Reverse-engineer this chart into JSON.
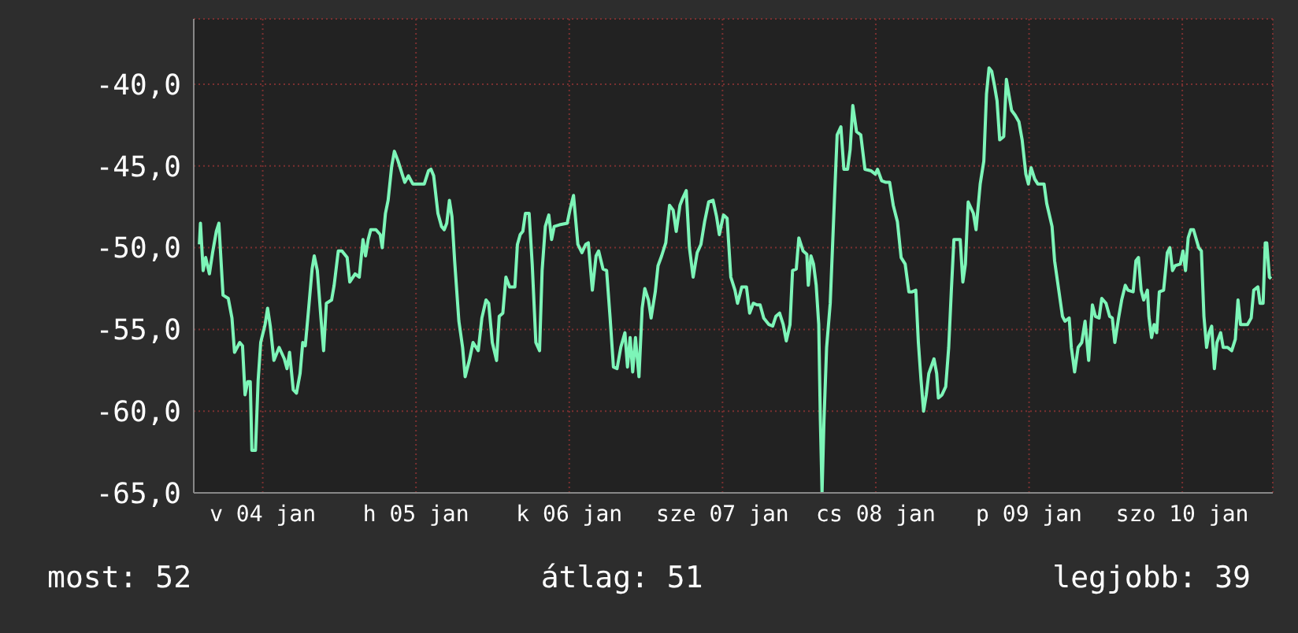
{
  "chart_data": {
    "type": "line",
    "color": "#7df5b8",
    "x": [
      "--01-04T02:05",
      "--01-04T02:15",
      "--01-04T02:40",
      "--01-04T03:04",
      "--01-04T03:39",
      "--01-04T04:09",
      "--01-04T04:44",
      "--01-04T05:08",
      "--01-04T05:47",
      "--01-04T06:36",
      "--01-04T07:11",
      "--01-04T07:35",
      "--01-04T08:24",
      "--01-04T08:50",
      "--01-04T09:14",
      "--01-04T09:39",
      "--01-04T10:03",
      "--01-04T10:18",
      "--01-04T10:52",
      "--01-04T11:17",
      "--01-04T11:41",
      "--01-04T12:22",
      "--01-04T12:46",
      "--01-04T13:11",
      "--01-04T13:45",
      "--01-04T14:34",
      "--01-04T15:23",
      "--01-04T15:48",
      "--01-04T16:12",
      "--01-04T16:47",
      "--01-04T17:17",
      "--01-04T17:51",
      "--01-04T18:16",
      "--01-04T18:40",
      "--01-04T19:05",
      "--01-04T19:44",
      "--01-04T20:04",
      "--01-04T20:33",
      "--01-04T21:07",
      "--01-04T21:32",
      "--01-04T21:58",
      "--01-04T22:47",
      "--01-04T23:11",
      "--01-04T23:50",
      "--01-05T00:24",
      "--01-05T01:13",
      "--01-05T01:38",
      "--01-05T02:28",
      "--01-05T03:07",
      "--01-05T03:42",
      "--01-05T04:06",
      "--01-05T04:31",
      "--01-05T04:55",
      "--01-05T05:44",
      "--01-05T06:24",
      "--01-05T06:43",
      "--01-05T07:13",
      "--01-05T07:38",
      "--01-05T08:12",
      "--01-05T08:37",
      "--01-05T09:12",
      "--01-05T09:50",
      "--01-05T10:15",
      "--01-05T10:49",
      "--01-05T11:30",
      "--01-05T13:18",
      "--01-05T13:57",
      "--01-05T14:21",
      "--01-05T14:46",
      "--01-05T15:26",
      "--01-05T16:00",
      "--01-05T16:25",
      "--01-05T16:49",
      "--01-05T17:14",
      "--01-05T17:38",
      "--01-05T18:03",
      "--01-05T18:43",
      "--01-05T19:18",
      "--01-05T19:42",
      "--01-05T20:21",
      "--01-05T20:56",
      "--01-05T21:45",
      "--01-05T22:19",
      "--01-05T22:58",
      "--01-05T23:23",
      "--01-05T23:57",
      "--01-06T00:37",
      "--01-06T01:02",
      "--01-06T01:36",
      "--01-06T02:05",
      "--01-06T02:40",
      "--01-06T03:29",
      "--01-06T03:53",
      "--01-06T04:19",
      "--01-06T04:44",
      "--01-06T05:08",
      "--01-06T05:43",
      "--01-06T06:12",
      "--01-06T06:46",
      "--01-06T07:21",
      "--01-06T07:45",
      "--01-06T08:15",
      "--01-06T08:48",
      "--01-06T09:14",
      "--01-06T09:39",
      "--01-06T10:28",
      "--01-06T11:41",
      "--01-06T12:06",
      "--01-06T12:40",
      "--01-06T13:21",
      "--01-06T13:59",
      "--01-06T14:34",
      "--01-06T14:59",
      "--01-06T15:37",
      "--01-06T16:12",
      "--01-06T16:36",
      "--01-06T17:17",
      "--01-06T17:51",
      "--01-06T18:24",
      "--01-06T18:55",
      "--01-06T19:29",
      "--01-06T20:04",
      "--01-06T20:43",
      "--01-06T21:07",
      "--01-06T21:32",
      "--01-06T21:56",
      "--01-06T22:22",
      "--01-06T22:55",
      "--01-06T23:25",
      "--01-06T23:50",
      "--01-07T00:24",
      "--01-07T00:49",
      "--01-07T01:28",
      "--01-07T01:54",
      "--01-07T02:28",
      "--01-07T03:07",
      "--01-07T03:42",
      "--01-07T04:16",
      "--01-07T04:45",
      "--01-07T05:20",
      "--01-07T05:44",
      "--01-07T06:19",
      "--01-07T06:49",
      "--01-07T07:24",
      "--01-07T08:02",
      "--01-07T08:37",
      "--01-07T09:12",
      "--01-07T09:50",
      "--01-07T10:31",
      "--01-07T11:04",
      "--01-07T11:30",
      "--01-07T12:09",
      "--01-07T12:43",
      "--01-07T13:18",
      "--01-07T13:57",
      "--01-07T14:21",
      "--01-07T15:01",
      "--01-07T15:45",
      "--01-07T16:15",
      "--01-07T16:49",
      "--01-07T17:24",
      "--01-07T17:53",
      "--01-07T18:27",
      "--01-07T19:16",
      "--01-07T19:51",
      "--01-07T20:21",
      "--01-07T20:56",
      "--01-07T21:30",
      "--01-07T21:59",
      "--01-07T22:34",
      "--01-07T22:58",
      "--01-07T23:33",
      "--01-07T23:57",
      "--01-08T00:37",
      "--01-08T01:12",
      "--01-08T01:26",
      "--01-08T01:51",
      "--01-08T02:15",
      "--01-08T02:40",
      "--01-08T03:04",
      "--01-08T03:19",
      "--01-08T03:35",
      "--01-08T03:53",
      "--01-08T04:18",
      "--01-08T04:52",
      "--01-08T05:33",
      "--01-08T05:57",
      "--01-08T06:32",
      "--01-08T07:00",
      "--01-08T07:35",
      "--01-08T07:59",
      "--01-08T08:24",
      "--01-08T08:59",
      "--01-08T09:39",
      "--01-08T10:18",
      "--01-08T11:17",
      "--01-08T11:56",
      "--01-08T12:16",
      "--01-08T12:55",
      "--01-08T13:35",
      "--01-08T14:10",
      "--01-08T14:44",
      "--01-08T15:23",
      "--01-08T15:58",
      "--01-08T16:36",
      "--01-08T17:11",
      "--01-08T17:41",
      "--01-08T18:16",
      "--01-08T18:40",
      "--01-08T19:05",
      "--01-08T19:29",
      "--01-08T19:54",
      "--01-08T20:18",
      "--01-08T21:07",
      "--01-08T21:32",
      "--01-08T21:48",
      "--01-08T22:22",
      "--01-08T22:57",
      "--01-08T23:25",
      "--01-08T23:50",
      "--01-09T00:14",
      "--01-09T01:13",
      "--01-09T01:38",
      "--01-09T02:02",
      "--01-09T02:28",
      "--01-09T03:17",
      "--01-09T03:42",
      "--01-09T04:21",
      "--01-09T04:55",
      "--01-09T05:20",
      "--01-09T05:44",
      "--01-09T06:09",
      "--01-09T06:33",
      "--01-09T06:59",
      "--01-09T07:24",
      "--01-09T08:02",
      "--01-09T08:27",
      "--01-09T08:47",
      "--01-09T09:16",
      "--01-09T09:50",
      "--01-09T10:25",
      "--01-09T10:55",
      "--01-09T11:30",
      "--01-09T11:54",
      "--01-09T12:19",
      "--01-09T12:53",
      "--01-09T13:22",
      "--01-09T14:21",
      "--01-09T14:46",
      "--01-09T15:36",
      "--01-09T16:00",
      "--01-09T16:39",
      "--01-09T17:14",
      "--01-09T17:38",
      "--01-09T18:17",
      "--01-09T18:37",
      "--01-09T19:08",
      "--01-09T19:41",
      "--01-09T20:15",
      "--01-09T20:46",
      "--01-09T21:20",
      "--01-09T21:55",
      "--01-09T22:23",
      "--01-09T22:58",
      "--01-09T23:23",
      "--01-10T00:03",
      "--01-10T00:37",
      "--01-10T01:02",
      "--01-10T01:26",
      "--01-10T02:01",
      "--01-10T02:30",
      "--01-10T03:04",
      "--01-10T03:29",
      "--01-10T04:18",
      "--01-10T04:44",
      "--01-10T05:08",
      "--01-10T05:33",
      "--01-10T05:57",
      "--01-10T06:32",
      "--01-10T06:46",
      "--01-10T07:11",
      "--01-10T07:35",
      "--01-10T07:59",
      "--01-10T08:24",
      "--01-10T09:04",
      "--01-10T09:39",
      "--01-10T10:03",
      "--01-10T10:28",
      "--01-10T10:52",
      "--01-10T11:41",
      "--01-10T12:06",
      "--01-10T12:30",
      "--01-10T12:55",
      "--01-10T13:19",
      "--01-10T13:45",
      "--01-10T14:34",
      "--01-10T14:59",
      "--01-10T15:23",
      "--01-10T15:48",
      "--01-10T16:12",
      "--01-10T16:36",
      "--01-10T17:01",
      "--01-10T17:25",
      "--01-10T18:00",
      "--01-10T18:24",
      "--01-10T19:05",
      "--01-10T19:44",
      "--01-10T20:18",
      "--01-10T20:43",
      "--01-10T21:07",
      "--01-10T22:12",
      "--01-10T22:47",
      "--01-10T23:11",
      "--01-10T23:50",
      "--01-11T00:10",
      "--01-11T00:39",
      "--01-11T00:59",
      "--01-11T01:13",
      "--01-11T01:38",
      "--01-11T01:54"
    ],
    "values": [
      -49.8,
      -48.5,
      -51.4,
      -50.6,
      -51.6,
      -50.3,
      -49.0,
      -48.5,
      -52.9,
      -53.1,
      -54.3,
      -56.4,
      -55.8,
      -56.0,
      -59.0,
      -58.2,
      -58.2,
      -62.4,
      -62.4,
      -58.1,
      -55.8,
      -54.7,
      -53.7,
      -54.8,
      -56.9,
      -56.1,
      -56.8,
      -57.4,
      -56.4,
      -58.7,
      -58.9,
      -57.7,
      -55.8,
      -56.0,
      -54.2,
      -51.3,
      -50.5,
      -51.4,
      -54.3,
      -56.3,
      -53.4,
      -53.2,
      -52.3,
      -50.2,
      -50.2,
      -50.6,
      -52.1,
      -51.6,
      -51.8,
      -49.5,
      -50.5,
      -49.5,
      -48.9,
      -48.9,
      -49.2,
      -50.0,
      -47.9,
      -47.1,
      -45.0,
      -44.1,
      -44.7,
      -45.5,
      -46.0,
      -45.6,
      -46.1,
      -46.1,
      -45.3,
      -45.2,
      -45.6,
      -47.9,
      -48.7,
      -48.9,
      -48.5,
      -47.1,
      -48.1,
      -50.8,
      -54.5,
      -56.1,
      -57.9,
      -56.9,
      -55.8,
      -56.3,
      -54.3,
      -53.2,
      -53.4,
      -55.8,
      -56.9,
      -54.2,
      -54.0,
      -51.8,
      -52.4,
      -52.4,
      -49.8,
      -49.2,
      -49.0,
      -47.9,
      -47.9,
      -51.0,
      -55.8,
      -56.3,
      -51.4,
      -48.7,
      -48.0,
      -49.5,
      -48.7,
      -48.6,
      -48.5,
      -47.7,
      -46.8,
      -49.8,
      -50.3,
      -49.8,
      -49.7,
      -52.6,
      -50.5,
      -50.2,
      -51.3,
      -51.4,
      -54.3,
      -57.3,
      -57.4,
      -56.1,
      -55.2,
      -57.3,
      -55.5,
      -57.6,
      -55.5,
      -57.9,
      -53.7,
      -52.5,
      -53.2,
      -54.3,
      -52.7,
      -51.1,
      -50.5,
      -49.7,
      -47.4,
      -47.7,
      -49.0,
      -47.4,
      -47.0,
      -46.5,
      -50.0,
      -51.8,
      -50.3,
      -49.8,
      -48.4,
      -47.2,
      -47.1,
      -48.1,
      -49.2,
      -48.0,
      -48.2,
      -51.8,
      -52.6,
      -53.4,
      -52.4,
      -52.4,
      -54.0,
      -53.4,
      -53.5,
      -53.5,
      -54.3,
      -54.7,
      -54.8,
      -54.2,
      -54.0,
      -54.7,
      -55.7,
      -54.7,
      -51.4,
      -51.3,
      -49.4,
      -50.2,
      -50.4,
      -52.3,
      -50.5,
      -51.0,
      -52.3,
      -54.7,
      -60.5,
      -65.0,
      -60.6,
      -56.1,
      -53.4,
      -46.8,
      -43.1,
      -42.6,
      -45.2,
      -45.2,
      -44.0,
      -41.3,
      -42.9,
      -43.1,
      -45.2,
      -45.3,
      -45.5,
      -45.2,
      -45.9,
      -46.0,
      -46.0,
      -47.4,
      -48.4,
      -50.6,
      -51.0,
      -52.7,
      -52.7,
      -52.6,
      -55.8,
      -58.1,
      -60.0,
      -59.0,
      -57.7,
      -56.8,
      -57.7,
      -59.2,
      -59.0,
      -58.5,
      -56.1,
      -52.6,
      -49.5,
      -49.5,
      -52.1,
      -51.0,
      -47.2,
      -47.9,
      -48.9,
      -46.1,
      -44.7,
      -40.6,
      -39.0,
      -39.2,
      -40.0,
      -41.0,
      -43.4,
      -43.2,
      -39.7,
      -40.5,
      -41.6,
      -41.9,
      -42.3,
      -43.4,
      -45.5,
      -46.1,
      -45.1,
      -45.8,
      -46.1,
      -46.1,
      -47.3,
      -48.7,
      -50.8,
      -52.6,
      -54.2,
      -54.5,
      -54.3,
      -56.1,
      -57.6,
      -56.1,
      -55.8,
      -54.5,
      -56.9,
      -53.5,
      -54.2,
      -54.3,
      -53.1,
      -53.4,
      -54.2,
      -54.3,
      -55.8,
      -54.3,
      -53.2,
      -52.3,
      -52.6,
      -52.7,
      -50.8,
      -50.6,
      -52.6,
      -53.2,
      -52.6,
      -54.2,
      -55.5,
      -54.7,
      -55.2,
      -52.7,
      -52.6,
      -50.3,
      -50.0,
      -51.4,
      -51.1,
      -51.0,
      -50.2,
      -51.4,
      -49.4,
      -48.9,
      -48.9,
      -50.0,
      -50.2,
      -54.2,
      -56.1,
      -55.2,
      -54.8,
      -57.4,
      -55.8,
      -55.2,
      -56.1,
      -56.1,
      -56.3,
      -55.6,
      -53.2,
      -54.7,
      -54.7,
      -54.3,
      -52.6,
      -52.4,
      -53.4,
      -53.4,
      -49.7,
      -49.7,
      -51.8,
      -51.9
    ],
    "xlim": [
      "--01-04T01:12",
      "--01-11T02:10"
    ],
    "xticks": [
      {
        "value": "--01-04T12:00",
        "label": "v 04 jan"
      },
      {
        "value": "--01-05T12:00",
        "label": "h 05 jan"
      },
      {
        "value": "--01-06T12:00",
        "label": "k 06 jan"
      },
      {
        "value": "--01-07T12:00",
        "label": "sze 07 jan"
      },
      {
        "value": "--01-08T12:00",
        "label": "cs 08 jan"
      },
      {
        "value": "--01-09T12:00",
        "label": "p 09 jan"
      },
      {
        "value": "--01-10T12:00",
        "label": "szo 10 jan"
      }
    ],
    "ylim": [
      -65,
      -36
    ],
    "yticks": [
      {
        "value": -65,
        "label": "-65,0"
      },
      {
        "value": -60,
        "label": "-60,0"
      },
      {
        "value": -55,
        "label": "-55,0"
      },
      {
        "value": -50,
        "label": "-50,0"
      },
      {
        "value": -45,
        "label": "-45,0"
      },
      {
        "value": -40,
        "label": "-40,0"
      }
    ],
    "grid": true,
    "annotations": [
      "most: 52",
      "átlag: 51",
      "legjobb: 39"
    ]
  }
}
